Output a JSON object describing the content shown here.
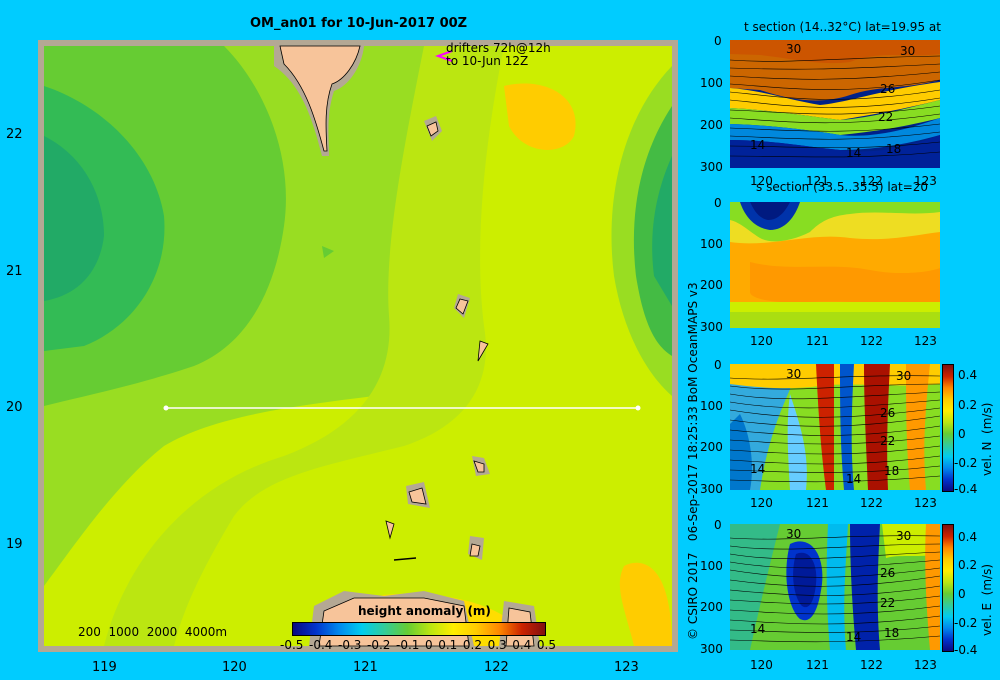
{
  "map": {
    "title": "OM_an01 for 10-Jun-2017 00Z",
    "drifters_line1": "drifters 72h@12h",
    "drifters_line2": "to 10-Jun 12Z",
    "lat_ticks": [
      "22",
      "21",
      "20",
      "19"
    ],
    "lon_ticks": [
      "119",
      "120",
      "121",
      "122",
      "123"
    ],
    "depth_legend": "200  1000  2000  4000m",
    "colorbar_title": "height anomaly (m)",
    "colorbar_ticks": [
      "-0.5",
      "-0.4",
      "-0.3",
      "-0.2",
      "-0.1",
      "0",
      "0.1",
      "0.2",
      "0.3",
      "0.4",
      "0.5"
    ],
    "section_latitude": 20,
    "section_lon_range": [
      119.5,
      123.2
    ]
  },
  "credit": "© CSIRO 2017   06-Sep-2017 18:25:33 BoM OceanMAPS v3",
  "panels": [
    {
      "title": "t section (14..32°C) lat=19.95 at",
      "y_ticks": [
        "0",
        "100",
        "200",
        "300"
      ],
      "x_ticks": [
        "120",
        "121",
        "122",
        "123"
      ],
      "contour_labels": [
        "30",
        "30",
        "26",
        "22",
        "14",
        "14",
        "18"
      ],
      "colorbar": false
    },
    {
      "title": "s section (33.5..35.5) lat=20",
      "y_ticks": [
        "0",
        "100",
        "200",
        "300"
      ],
      "x_ticks": [
        "120",
        "121",
        "122",
        "123"
      ],
      "contour_labels": [],
      "colorbar": false
    },
    {
      "title": "",
      "y_ticks": [
        "0",
        "100",
        "200",
        "300"
      ],
      "x_ticks": [
        "120",
        "121",
        "122",
        "123"
      ],
      "contour_labels": [
        "30",
        "30",
        "26",
        "22",
        "14",
        "14",
        "18"
      ],
      "colorbar": true,
      "colorbar_label": "vel. N  (m/s)",
      "colorbar_ticks": [
        "0.4",
        "0.2",
        "0",
        "-0.2",
        "-0.4"
      ]
    },
    {
      "title": "",
      "y_ticks": [
        "0",
        "100",
        "200",
        "300"
      ],
      "x_ticks": [
        "120",
        "121",
        "122",
        "123"
      ],
      "contour_labels": [
        "30",
        "30",
        "26",
        "22",
        "14",
        "14",
        "18"
      ],
      "colorbar": true,
      "colorbar_label": "vel. E  (m/s)",
      "colorbar_ticks": [
        "0.4",
        "0.2",
        "0",
        "-0.2",
        "-0.4"
      ]
    }
  ],
  "colors": {
    "background": "#00ccff",
    "land": "#f7c49a",
    "shelf": "#b4a894",
    "map_frame": "#b4a894"
  }
}
